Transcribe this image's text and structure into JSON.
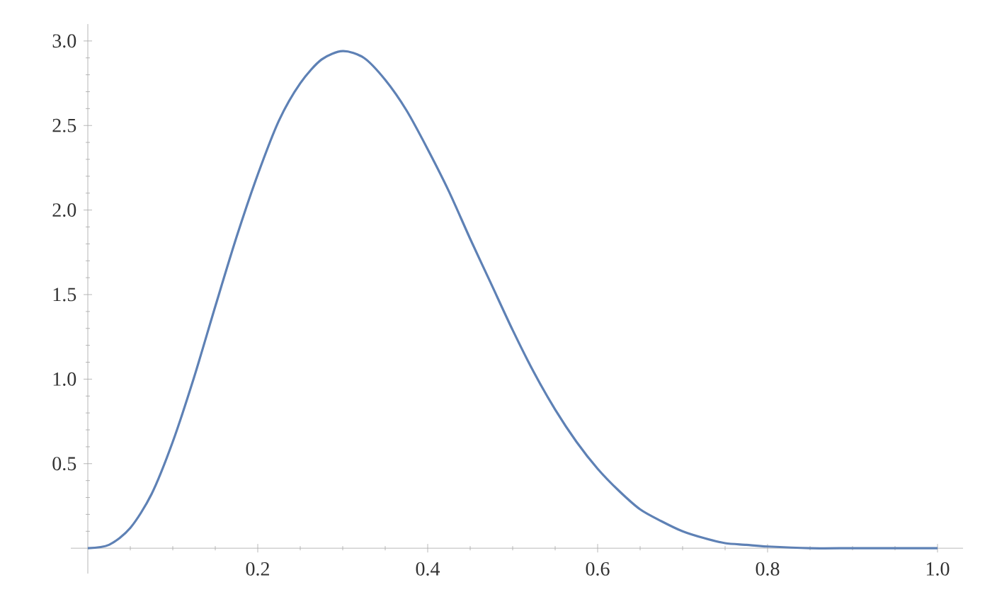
{
  "chart_data": {
    "type": "line",
    "x": [
      0,
      0.025,
      0.05,
      0.075,
      0.1,
      0.125,
      0.15,
      0.175,
      0.2,
      0.225,
      0.25,
      0.275,
      0.3,
      0.325,
      0.35,
      0.375,
      0.4,
      0.425,
      0.45,
      0.475,
      0.5,
      0.525,
      0.55,
      0.575,
      0.6,
      0.625,
      0.65,
      0.675,
      0.7,
      0.725,
      0.75,
      0.775,
      0.8,
      0.85,
      0.9,
      0.95,
      1.0
    ],
    "series": [
      {
        "color": "#5e81b5",
        "values": [
          0,
          0.02,
          0.12,
          0.32,
          0.63,
          1.01,
          1.43,
          1.84,
          2.21,
          2.53,
          2.75,
          2.89,
          2.94,
          2.9,
          2.77,
          2.59,
          2.36,
          2.11,
          1.83,
          1.56,
          1.29,
          1.04,
          0.82,
          0.63,
          0.47,
          0.34,
          0.23,
          0.16,
          0.1,
          0.06,
          0.03,
          0.02,
          0.01,
          0,
          0,
          0,
          0
        ]
      }
    ],
    "xlim": [
      -0.02,
      1.03
    ],
    "ylim": [
      -0.15,
      3.1
    ],
    "xticks": [
      {
        "value": 0,
        "label": null
      },
      0.2,
      0.4,
      0.6,
      0.8,
      {
        "value": 1,
        "label": "1.0"
      }
    ],
    "yticks": [
      {
        "value": 0,
        "label": null
      },
      0.5,
      {
        "value": 1,
        "label": "1.0"
      },
      1.5,
      {
        "value": 2,
        "label": "2.0"
      },
      2.5,
      {
        "value": 3,
        "label": "3.0"
      }
    ],
    "grid": false,
    "marker": "none",
    "line_style": "solid"
  }
}
